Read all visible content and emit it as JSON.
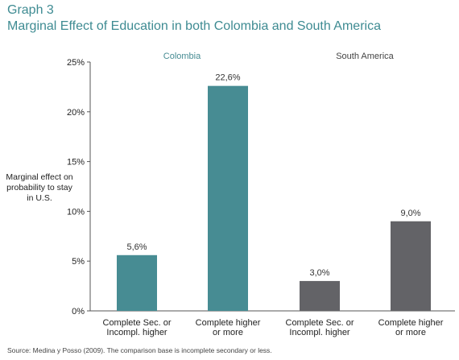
{
  "title": "Graph 3",
  "subtitle": "Marginal Effect of Education in both Colombia and South America",
  "source": "Source: Medina y Posso (2009). The comparison base is  incomplete secondary or less.",
  "colors": {
    "title": "#3e8b92",
    "colombia": "#478c93",
    "south_america": "#636367"
  },
  "chart_data": {
    "type": "bar",
    "title": "Graph 3",
    "subtitle": "Marginal Effect of Education in both Colombia and South America",
    "ylabel": "Marginal effect on probability to stay in U.S.",
    "ylim": [
      0,
      25
    ],
    "yticks": [
      0,
      5,
      10,
      15,
      20,
      25
    ],
    "ytick_labels": [
      "0%",
      "5%",
      "10%",
      "15%",
      "20%",
      "25%"
    ],
    "grid": false,
    "groups": [
      "Colombia",
      "South America"
    ],
    "bars": [
      {
        "group": "Colombia",
        "category": [
          "Complete Sec. or",
          "Incompl. higher"
        ],
        "value": 5.6,
        "label": "5,6%"
      },
      {
        "group": "Colombia",
        "category": [
          "Complete higher",
          "or more"
        ],
        "value": 22.6,
        "label": "22,6%"
      },
      {
        "group": "South America",
        "category": [
          "Complete Sec. or",
          "Incompl. higher"
        ],
        "value": 3.0,
        "label": "3,0%"
      },
      {
        "group": "South America",
        "category": [
          "Complete higher",
          "or more"
        ],
        "value": 9.0,
        "label": "9,0%"
      }
    ]
  }
}
